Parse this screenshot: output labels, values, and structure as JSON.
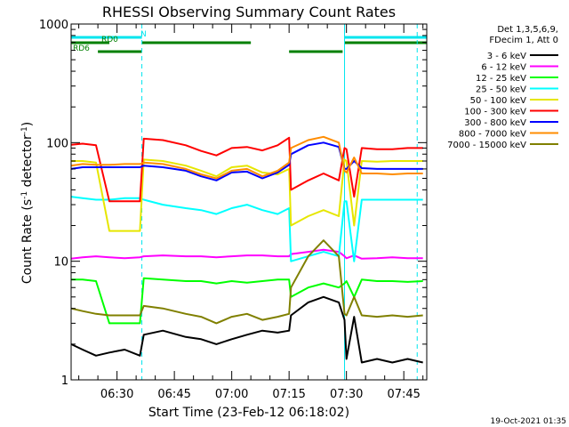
{
  "chart_data": {
    "type": "line",
    "title": "RHESSI Observing Summary Count Rates",
    "xlabel": "Start Time (23-Feb-12 06:18:02)",
    "ylabel": "Count Rate (s",
    "ylabel_sup1": "-1",
    "ylabel_mid": " detector",
    "ylabel_sup2": "-1",
    "ylabel_end": ")",
    "y_scale": "log",
    "ylim": [
      1,
      1000
    ],
    "xlim_minutes": [
      0,
      93
    ],
    "x_tick_labels": [
      "06:30",
      "06:45",
      "07:00",
      "07:15",
      "07:30",
      "07:45"
    ],
    "x_tick_minutes": [
      12,
      27,
      42,
      57,
      72,
      87
    ],
    "y_tick_labels": [
      "1",
      "10",
      "100",
      "1000"
    ],
    "y_tick_values": [
      1,
      10,
      100,
      1000
    ],
    "legend_header": [
      "Det 1,3,5,6,9,",
      "FDecim 1, Att 0"
    ],
    "legend_position": "right",
    "footer_date": "19-Oct-2021 01:35",
    "night_boundaries_minutes": [
      18.5,
      71.5,
      90.5
    ],
    "flags": [
      {
        "name": "N",
        "color": "#00e5ee",
        "segments": [
          [
            0,
            18.5
          ],
          [
            71.5,
            93
          ]
        ]
      },
      {
        "name": "RD0",
        "color": "#008000",
        "segments": [
          [
            0,
            10
          ],
          [
            18.5,
            47
          ],
          [
            71.5,
            93
          ]
        ]
      },
      {
        "name": "RD6",
        "color": "#008000",
        "segments": [
          [
            7,
            18.5
          ],
          [
            57,
            71
          ]
        ]
      }
    ],
    "x": [
      0,
      3,
      6.5,
      10,
      14,
      18,
      19,
      24,
      30,
      34,
      38,
      42,
      46,
      50,
      54,
      57,
      57.5,
      62,
      66,
      70,
      74,
      71.5,
      72,
      76,
      80,
      84,
      88,
      92
    ],
    "series": [
      {
        "name": "3 - 6 keV",
        "color": "#000000",
        "values": [
          2.0,
          1.8,
          1.6,
          1.7,
          1.8,
          1.6,
          2.4,
          2.6,
          2.3,
          2.2,
          2.0,
          2.2,
          2.4,
          2.6,
          2.5,
          2.6,
          3.5,
          4.5,
          5.0,
          4.5,
          3.4,
          3.2,
          1.5,
          1.4,
          1.5,
          1.4,
          1.5,
          1.4
        ]
      },
      {
        "name": "6 - 12 keV",
        "color": "#ff00ff",
        "values": [
          10.5,
          10.8,
          11.0,
          10.8,
          10.6,
          10.8,
          11.0,
          11.2,
          11.0,
          11.0,
          10.8,
          11.0,
          11.2,
          11.2,
          11.0,
          11.0,
          11.5,
          12.0,
          12.5,
          12.0,
          11.2,
          11.0,
          10.6,
          10.5,
          10.6,
          10.8,
          10.6,
          10.6
        ]
      },
      {
        "name": "12 - 25 keV",
        "color": "#00ff00",
        "values": [
          7.0,
          7.0,
          6.8,
          3.0,
          3.0,
          3.0,
          7.2,
          7.0,
          6.8,
          6.8,
          6.5,
          6.8,
          6.6,
          6.8,
          7.0,
          7.0,
          5.0,
          6.0,
          6.5,
          6.0,
          5.0,
          6.5,
          6.8,
          7.0,
          6.8,
          6.8,
          6.7,
          6.8
        ]
      },
      {
        "name": "25 - 50 keV",
        "color": "#00ffff",
        "values": [
          35,
          34,
          33,
          33,
          34,
          34,
          33,
          30,
          28,
          27,
          25,
          28,
          30,
          27,
          25,
          28,
          10,
          11,
          12,
          11,
          10,
          32,
          32,
          33,
          33,
          33,
          33,
          33
        ]
      },
      {
        "name": "50 - 100 keV",
        "color": "#e6e600",
        "values": [
          70,
          70,
          68,
          18,
          18,
          18,
          72,
          70,
          64,
          58,
          52,
          62,
          64,
          56,
          54,
          60,
          20,
          24,
          27,
          24,
          20,
          72,
          70,
          70,
          69,
          70,
          70,
          70
        ]
      },
      {
        "name": "100 - 300 keV",
        "color": "#ff0000",
        "values": [
          96,
          98,
          95,
          32,
          32,
          32,
          108,
          105,
          95,
          85,
          78,
          90,
          92,
          86,
          95,
          110,
          40,
          48,
          55,
          48,
          35,
          90,
          88,
          90,
          88,
          88,
          90,
          90
        ]
      },
      {
        "name": "300 - 800 keV",
        "color": "#0000ff",
        "values": [
          60,
          62,
          62,
          62,
          62,
          62,
          64,
          62,
          58,
          52,
          48,
          56,
          57,
          50,
          56,
          65,
          80,
          95,
          100,
          92,
          70,
          60,
          60,
          61,
          60,
          60,
          60,
          60
        ]
      },
      {
        "name": "800 - 7000 keV",
        "color": "#ff8c00",
        "values": [
          64,
          66,
          65,
          65,
          66,
          66,
          68,
          66,
          60,
          54,
          50,
          58,
          60,
          52,
          58,
          68,
          90,
          105,
          112,
          100,
          75,
          58,
          56,
          55,
          55,
          54,
          55,
          55
        ]
      },
      {
        "name": "7000 - 15000 keV",
        "color": "#808000",
        "values": [
          4.0,
          3.8,
          3.6,
          3.5,
          3.5,
          3.5,
          4.2,
          4.0,
          3.6,
          3.4,
          3.0,
          3.4,
          3.6,
          3.2,
          3.4,
          3.6,
          6.0,
          11.0,
          15.0,
          11.0,
          5.0,
          3.6,
          3.5,
          3.5,
          3.4,
          3.5,
          3.4,
          3.5
        ]
      }
    ]
  }
}
